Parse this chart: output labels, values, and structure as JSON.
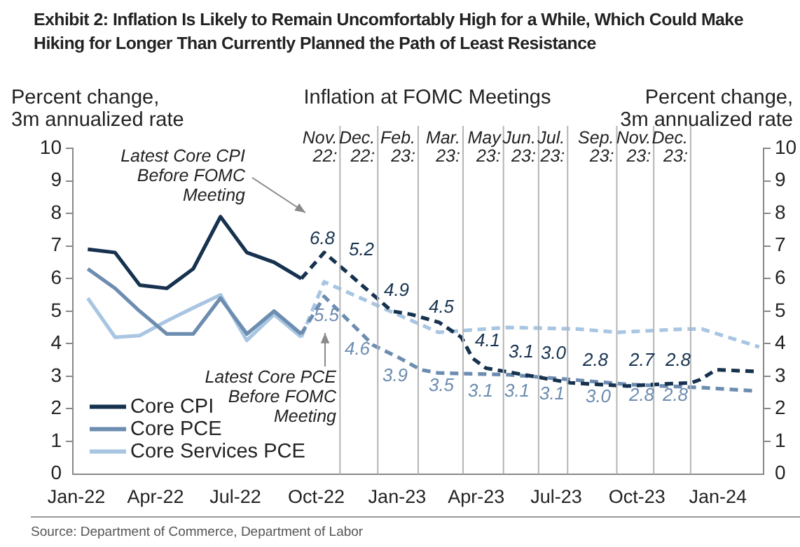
{
  "chart_data": {
    "type": "line",
    "title": "Exhibit 2: Inflation Is Likely to Remain Uncomfortably High for a While, Which Could Make Hiking for Longer Than Currently Planned the Path of Least Resistance",
    "ylabel": "Percent change,\n3m annualized rate",
    "y2label": "Percent change,\n3m annualized rate",
    "xlim": [
      "2021-12-28",
      "2024-02-22"
    ],
    "xticks": [
      {
        "value": "2022-01",
        "label": "Jan-22"
      },
      {
        "value": "2022-04",
        "label": "Apr-22"
      },
      {
        "value": "2022-07",
        "label": "Jul-22"
      },
      {
        "value": "2022-10",
        "label": "Oct-22"
      },
      {
        "value": "2023-01",
        "label": "Jan-23"
      },
      {
        "value": "2023-04",
        "label": "Apr-23"
      },
      {
        "value": "2023-07",
        "label": "Jul-23"
      },
      {
        "value": "2023-10",
        "label": "Oct-23"
      },
      {
        "value": "2024-01",
        "label": "Jan-24"
      }
    ],
    "ylim": [
      0,
      10
    ],
    "yticks": [
      0,
      1,
      2,
      3,
      4,
      5,
      6,
      7,
      8,
      9,
      10
    ],
    "y2lim": [
      0,
      10
    ],
    "y2ticks": [
      0,
      1,
      2,
      3,
      4,
      5,
      6,
      7,
      8,
      9,
      10
    ],
    "grid": false,
    "legend": "bottom left",
    "marker": "none",
    "series": [
      {
        "name": "Core CPI",
        "color": "#16324f",
        "line_style": "solid",
        "x": [
          "2022-01-14",
          "2022-02-14",
          "2022-03-14",
          "2022-04-14",
          "2022-05-14",
          "2022-06-14",
          "2022-07-14",
          "2022-08-14",
          "2022-09-14"
        ],
        "values": [
          6.9,
          6.8,
          5.8,
          5.7,
          6.3,
          7.9,
          6.8,
          6.5,
          6.0
        ]
      },
      {
        "name": "Core PCE",
        "color": "#6d8db0",
        "line_style": "solid",
        "x": [
          "2022-01-14",
          "2022-02-14",
          "2022-03-14",
          "2022-04-14",
          "2022-05-14",
          "2022-06-14",
          "2022-07-14",
          "2022-08-14",
          "2022-09-14"
        ],
        "values": [
          6.3,
          5.7,
          5.0,
          4.3,
          4.3,
          5.4,
          4.3,
          5.0,
          4.3
        ]
      },
      {
        "name": "Core Services PCE",
        "color": "#a8c5e2",
        "line_style": "solid",
        "x": [
          "2022-01-14",
          "2022-02-14",
          "2022-03-14",
          "2022-04-14",
          "2022-05-14",
          "2022-06-14",
          "2022-07-14",
          "2022-08-14",
          "2022-09-14"
        ],
        "values": [
          5.4,
          4.2,
          4.25,
          4.7,
          5.1,
          5.5,
          4.1,
          4.9,
          4.2
        ]
      },
      {
        "color": "#16324f",
        "line_style": "dashed",
        "x": [
          "2022-09-14",
          "2022-10-10",
          "2022-12-26",
          "2023-01-17",
          "2023-02-18",
          "2023-03-15",
          "2023-03-28",
          "2023-04-12",
          "2023-05-14",
          "2023-06-15",
          "2023-07-17",
          "2023-08-18",
          "2023-09-20",
          "2023-10-22",
          "2023-12-02",
          "2023-12-12",
          "2023-12-30",
          "2024-02-12"
        ],
        "values": [
          6.0,
          6.8,
          5.0,
          4.9,
          4.65,
          4.2,
          3.55,
          3.25,
          3.1,
          2.95,
          2.8,
          2.75,
          2.7,
          2.75,
          2.8,
          2.9,
          3.2,
          3.15
        ]
      },
      {
        "color": "#6d8db0",
        "line_style": "dashed",
        "x": [
          "2022-09-14",
          "2022-10-10",
          "2022-12-05",
          "2023-01-01",
          "2023-01-28",
          "2023-02-17",
          "2023-05-07",
          "2023-07-17",
          "2023-09-20",
          "2023-12-14",
          "2024-02-12"
        ],
        "values": [
          4.3,
          5.45,
          3.95,
          3.6,
          3.2,
          3.1,
          3.05,
          2.9,
          2.75,
          2.65,
          2.55
        ]
      },
      {
        "color": "#a8c5e2",
        "line_style": "dashed",
        "x": [
          "2022-09-14",
          "2022-10-10",
          "2022-12-28",
          "2023-02-17",
          "2023-05-07",
          "2023-07-26",
          "2023-09-09",
          "2023-11-23",
          "2023-12-14",
          "2024-02-17"
        ],
        "values": [
          4.2,
          5.9,
          4.95,
          4.35,
          4.5,
          4.45,
          4.35,
          4.45,
          4.45,
          3.9
        ]
      }
    ],
    "ref_lines": [
      {
        "axis": "x",
        "value": "2022-10-28",
        "label": "Nov.\n22:",
        "color": "#b5b5b5"
      },
      {
        "axis": "x",
        "value": "2022-12-10",
        "label": "Dec.\n22:",
        "color": "#b5b5b5"
      },
      {
        "axis": "x",
        "value": "2023-01-25",
        "label": "Feb.\n23:",
        "color": "#b5b5b5"
      },
      {
        "axis": "x",
        "value": "2023-03-17",
        "label": "Mar.\n23:",
        "color": "#b5b5b5"
      },
      {
        "axis": "x",
        "value": "2023-05-02",
        "label": "May\n23:",
        "color": "#b5b5b5"
      },
      {
        "axis": "x",
        "value": "2023-06-11",
        "label": "Jun.\n23:",
        "color": "#b5b5b5"
      },
      {
        "axis": "x",
        "value": "2023-07-14",
        "label": "Jul.\n23:",
        "color": "#b5b5b5"
      },
      {
        "axis": "x",
        "value": "2023-09-08",
        "label": "Sep.\n23:",
        "color": "#b5b5b5"
      },
      {
        "axis": "x",
        "value": "2023-10-20",
        "label": "Nov.\n23:",
        "color": "#b5b5b5"
      },
      {
        "axis": "x",
        "value": "2023-12-01",
        "label": "Dec.\n23:",
        "color": "#b5b5b5"
      }
    ],
    "annotations": [
      "Inflation at FOMC Meetings",
      "Latest Core CPI\nBefore FOMC\nMeeting",
      "Latest Core PCE\nBefore FOMC\nMeeting",
      "6.8",
      "5.2",
      "4.9",
      "4.5",
      "4.1",
      "3.1",
      "3.0",
      "2.8",
      "2.7",
      "2.8",
      "5.5",
      "4.6",
      "3.9",
      "3.5",
      "3.1",
      "3.1",
      "3.1",
      "3.0",
      "2.8",
      "2.8",
      "Source: Department of Commerce, Department of Labor"
    ]
  }
}
